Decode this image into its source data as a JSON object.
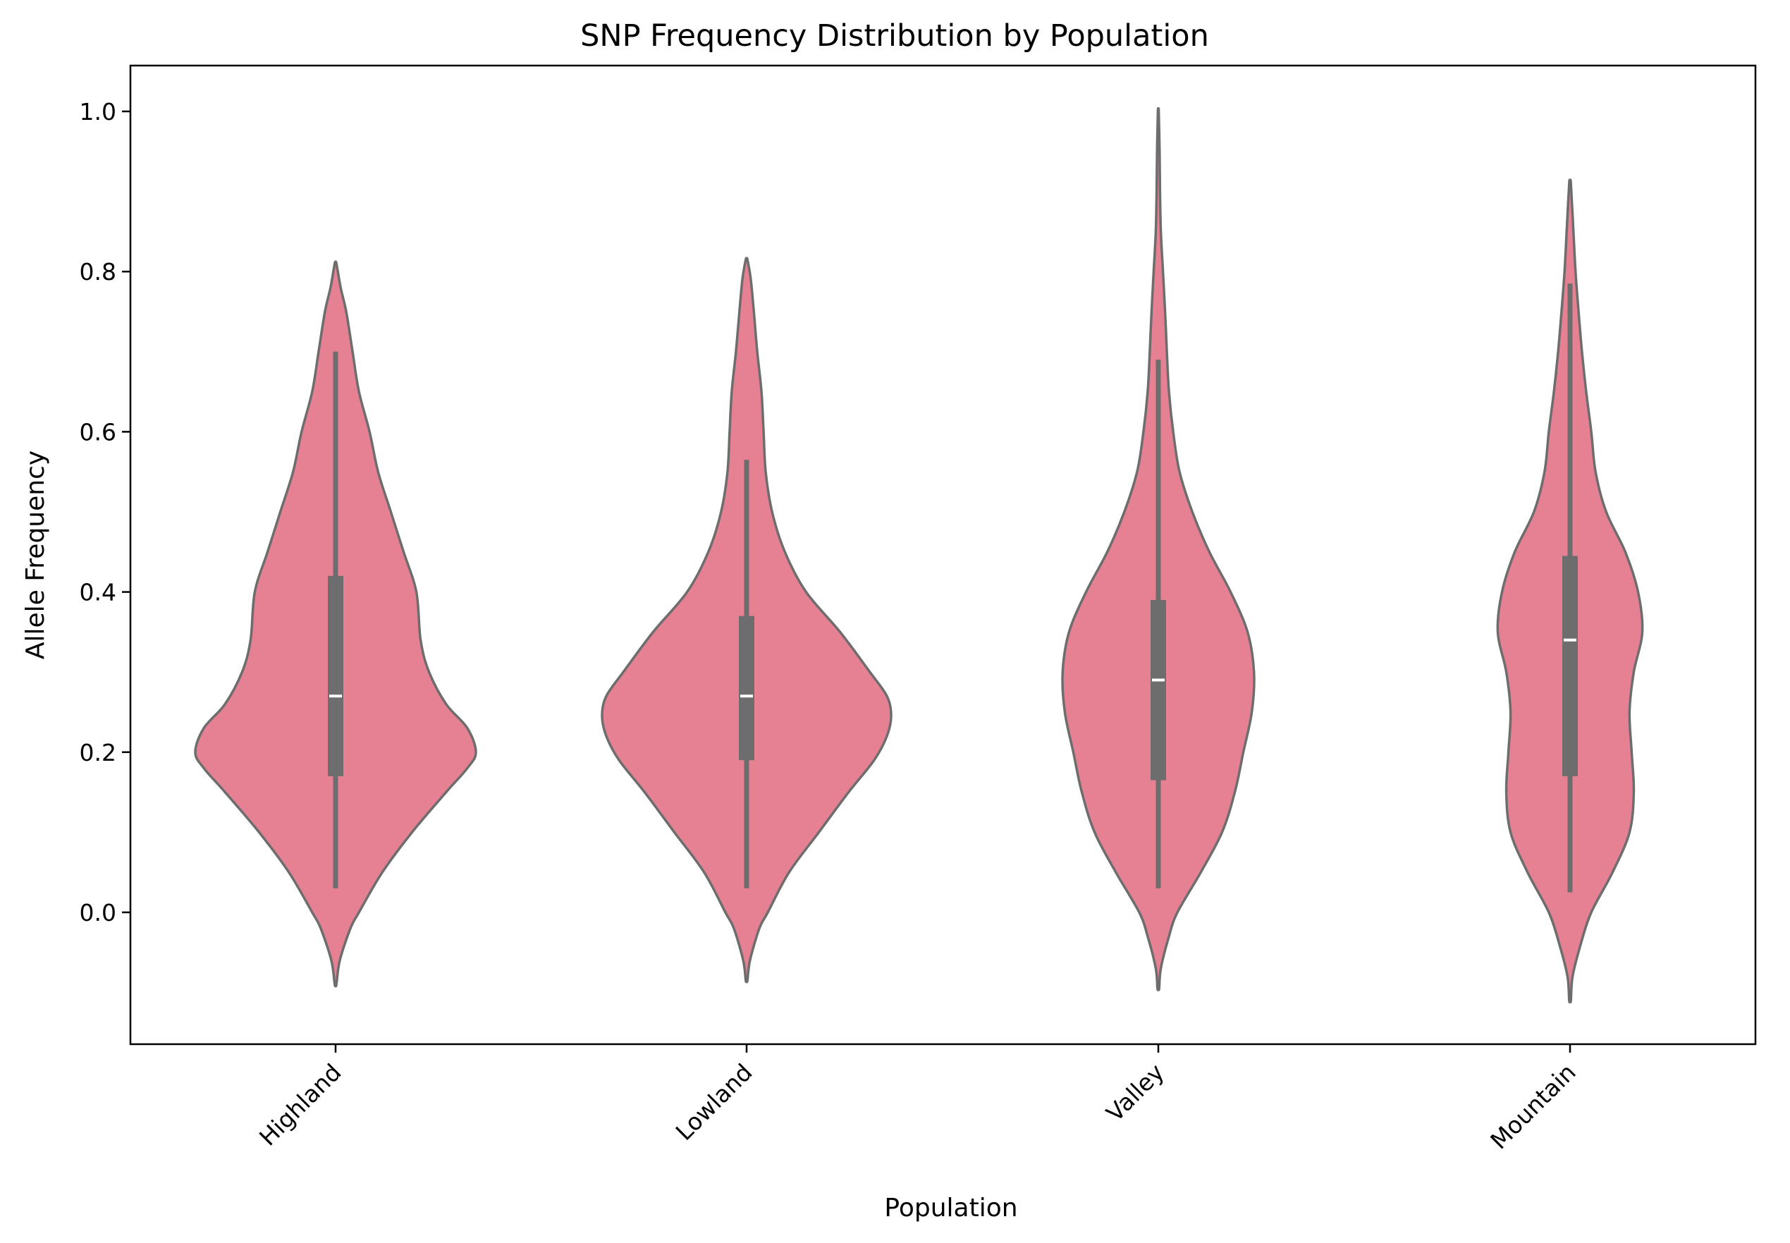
{
  "chart_data": {
    "type": "violin",
    "title": "SNP Frequency Distribution by Population",
    "xlabel": "Population",
    "ylabel": "Allele Frequency",
    "ylim": [
      -0.17,
      1.06
    ],
    "yticks": [
      0.0,
      0.2,
      0.4,
      0.6,
      0.8,
      1.0
    ],
    "ytick_labels": [
      "0.0",
      "0.2",
      "0.4",
      "0.6",
      "0.8",
      "1.0"
    ],
    "categories": [
      "Highland",
      "Lowland",
      "Valley",
      "Mountain"
    ],
    "colors": {
      "fill": "#e68193",
      "stroke": "#6d6d6d",
      "median": "#ffffff",
      "axis": "#000000"
    },
    "violins": [
      {
        "name": "Highland",
        "q1": 0.17,
        "median": 0.27,
        "q3": 0.42,
        "whisker_low": 0.03,
        "whisker_high": 0.7,
        "profile": [
          [
            -0.09,
            0.002
          ],
          [
            -0.06,
            0.01
          ],
          [
            -0.02,
            0.035
          ],
          [
            0.0,
            0.055
          ],
          [
            0.05,
            0.11
          ],
          [
            0.1,
            0.18
          ],
          [
            0.15,
            0.26
          ],
          [
            0.18,
            0.31
          ],
          [
            0.2,
            0.33
          ],
          [
            0.23,
            0.31
          ],
          [
            0.26,
            0.26
          ],
          [
            0.3,
            0.22
          ],
          [
            0.34,
            0.2
          ],
          [
            0.4,
            0.19
          ],
          [
            0.45,
            0.16
          ],
          [
            0.5,
            0.13
          ],
          [
            0.55,
            0.1
          ],
          [
            0.6,
            0.08
          ],
          [
            0.65,
            0.055
          ],
          [
            0.7,
            0.04
          ],
          [
            0.75,
            0.025
          ],
          [
            0.78,
            0.012
          ],
          [
            0.81,
            0.002
          ]
        ]
      },
      {
        "name": "Lowland",
        "q1": 0.19,
        "median": 0.27,
        "q3": 0.37,
        "whisker_low": 0.03,
        "whisker_high": 0.565,
        "profile": [
          [
            -0.085,
            0.002
          ],
          [
            -0.06,
            0.008
          ],
          [
            -0.02,
            0.03
          ],
          [
            0.0,
            0.05
          ],
          [
            0.05,
            0.1
          ],
          [
            0.1,
            0.17
          ],
          [
            0.15,
            0.24
          ],
          [
            0.19,
            0.3
          ],
          [
            0.22,
            0.33
          ],
          [
            0.245,
            0.34
          ],
          [
            0.27,
            0.33
          ],
          [
            0.3,
            0.29
          ],
          [
            0.35,
            0.22
          ],
          [
            0.4,
            0.14
          ],
          [
            0.45,
            0.09
          ],
          [
            0.5,
            0.06
          ],
          [
            0.55,
            0.045
          ],
          [
            0.6,
            0.04
          ],
          [
            0.65,
            0.035
          ],
          [
            0.7,
            0.025
          ],
          [
            0.75,
            0.017
          ],
          [
            0.79,
            0.01
          ],
          [
            0.815,
            0.002
          ]
        ]
      },
      {
        "name": "Valley",
        "q1": 0.165,
        "median": 0.29,
        "q3": 0.39,
        "whisker_low": 0.03,
        "whisker_high": 0.69,
        "profile": [
          [
            -0.095,
            0.002
          ],
          [
            -0.07,
            0.006
          ],
          [
            -0.03,
            0.025
          ],
          [
            0.0,
            0.045
          ],
          [
            0.05,
            0.1
          ],
          [
            0.1,
            0.15
          ],
          [
            0.15,
            0.18
          ],
          [
            0.2,
            0.2
          ],
          [
            0.25,
            0.22
          ],
          [
            0.3,
            0.225
          ],
          [
            0.35,
            0.21
          ],
          [
            0.4,
            0.17
          ],
          [
            0.45,
            0.12
          ],
          [
            0.5,
            0.08
          ],
          [
            0.55,
            0.05
          ],
          [
            0.6,
            0.035
          ],
          [
            0.65,
            0.025
          ],
          [
            0.7,
            0.02
          ],
          [
            0.75,
            0.016
          ],
          [
            0.8,
            0.011
          ],
          [
            0.85,
            0.006
          ],
          [
            0.9,
            0.004
          ],
          [
            0.95,
            0.003
          ],
          [
            1.0,
            0.001
          ]
        ]
      },
      {
        "name": "Mountain",
        "q1": 0.17,
        "median": 0.34,
        "q3": 0.445,
        "whisker_low": 0.025,
        "whisker_high": 0.785,
        "profile": [
          [
            -0.11,
            0.002
          ],
          [
            -0.08,
            0.006
          ],
          [
            -0.04,
            0.025
          ],
          [
            0.0,
            0.05
          ],
          [
            0.05,
            0.1
          ],
          [
            0.1,
            0.14
          ],
          [
            0.15,
            0.15
          ],
          [
            0.2,
            0.145
          ],
          [
            0.25,
            0.14
          ],
          [
            0.3,
            0.15
          ],
          [
            0.35,
            0.17
          ],
          [
            0.4,
            0.16
          ],
          [
            0.45,
            0.13
          ],
          [
            0.5,
            0.085
          ],
          [
            0.55,
            0.06
          ],
          [
            0.6,
            0.05
          ],
          [
            0.65,
            0.038
          ],
          [
            0.7,
            0.028
          ],
          [
            0.75,
            0.02
          ],
          [
            0.8,
            0.013
          ],
          [
            0.85,
            0.008
          ],
          [
            0.91,
            0.002
          ]
        ]
      }
    ]
  }
}
